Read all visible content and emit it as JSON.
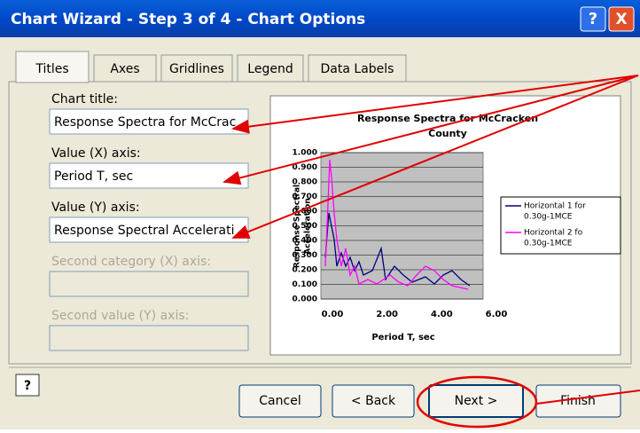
{
  "window": {
    "title": "Chart Wizard - Step 3 of 4 - Chart Options",
    "help": "?",
    "close": "X"
  },
  "tabs": [
    "Titles",
    "Axes",
    "Gridlines",
    "Legend",
    "Data Labels"
  ],
  "fields": [
    {
      "label": "Chart title:",
      "value": "Response Spectra for McCrac"
    },
    {
      "label": "Value (X) axis:",
      "value": "Period T, sec"
    },
    {
      "label": "Value (Y) axis:",
      "value": "Response Spectral Accelerati"
    },
    {
      "label": "Second category (X) axis:",
      "value": ""
    },
    {
      "label": "Second value (Y) axis:",
      "value": ""
    }
  ],
  "preview": {
    "title": [
      "Response Spectra for McCracken",
      "County"
    ],
    "y_axis_title": [
      "Response Spectral",
      "Acceleration"
    ],
    "x_axis_title": "Period T, sec",
    "yticks": [
      "0.000",
      "0.100",
      "0.200",
      "0.300",
      "0.400",
      "0.500",
      "0.600",
      "0.700",
      "0.800",
      "0.900",
      "1.000"
    ],
    "xticks": [
      "0.00",
      "2.00",
      "4.00",
      "6.00"
    ],
    "legend": [
      [
        "Horizontal 1 for",
        "0.30g-1MCE"
      ],
      [
        "Horizontal 2 fo",
        "0.30g-1MCE"
      ]
    ]
  },
  "buttons": {
    "help": "?",
    "cancel": "Cancel",
    "back": "< Back",
    "next": "Next >",
    "finish": "Finish"
  }
}
